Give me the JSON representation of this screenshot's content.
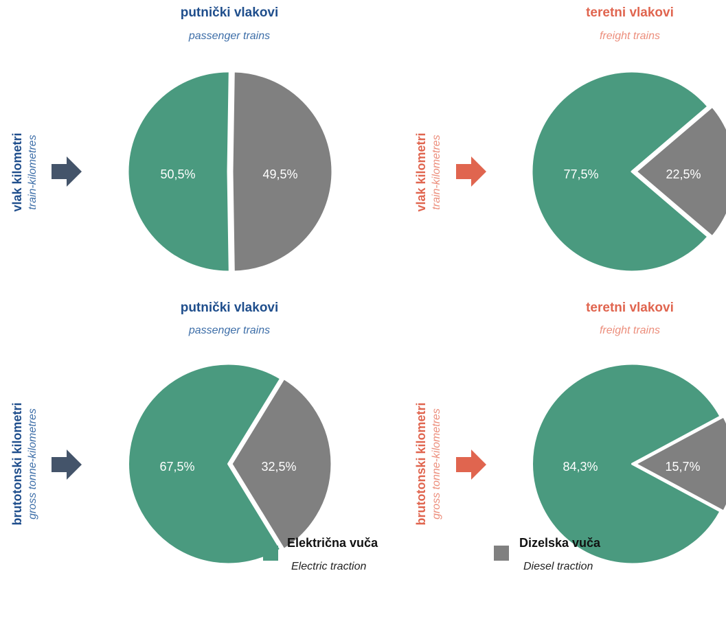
{
  "colors": {
    "electric": "#4a9a7f",
    "diesel": "#808080",
    "blue": "#1f4e8c",
    "red": "#e0654f",
    "arrow_dark": "#44546a"
  },
  "top_left": {
    "title": "putnički vlakovi",
    "subtitle": "passenger trains"
  },
  "top_right": {
    "title": "teretni vlakovi",
    "subtitle": "freight trains"
  },
  "bottom_left": {
    "title": "putnički vlakovi",
    "subtitle": "passenger trains"
  },
  "bottom_right": {
    "title": "teretni vlakovi",
    "subtitle": "freight trains"
  },
  "row1_label": {
    "main": "vlak kilometri",
    "sub": "train-kilometres"
  },
  "row2_label": {
    "main": "brutotonski kilometri",
    "sub": "gross tonne-kilometres"
  },
  "legend": {
    "electric_main": "Električna vuča",
    "electric_sub": "Electric traction",
    "diesel_main": "Dizelska vuča",
    "diesel_sub": "Diesel traction"
  },
  "chart_data": [
    {
      "type": "pie",
      "categories": [
        "Električna vuča",
        "Dizelska vuča"
      ],
      "values": [
        50.5,
        49.5
      ],
      "labels": [
        "50,5%",
        "49,5%"
      ]
    },
    {
      "type": "pie",
      "categories": [
        "Električna vuča",
        "Dizelska vuča"
      ],
      "values": [
        77.5,
        22.5
      ],
      "labels": [
        "77,5%",
        "22,5%"
      ]
    },
    {
      "type": "pie",
      "categories": [
        "Električna vuča",
        "Dizelska vuča"
      ],
      "values": [
        67.5,
        32.5
      ],
      "labels": [
        "67,5%",
        "32,5%"
      ]
    },
    {
      "type": "pie",
      "categories": [
        "Električna vuča",
        "Dizelska vuča"
      ],
      "values": [
        84.3,
        15.7
      ],
      "labels": [
        "84,3%",
        "15,7%"
      ]
    }
  ]
}
